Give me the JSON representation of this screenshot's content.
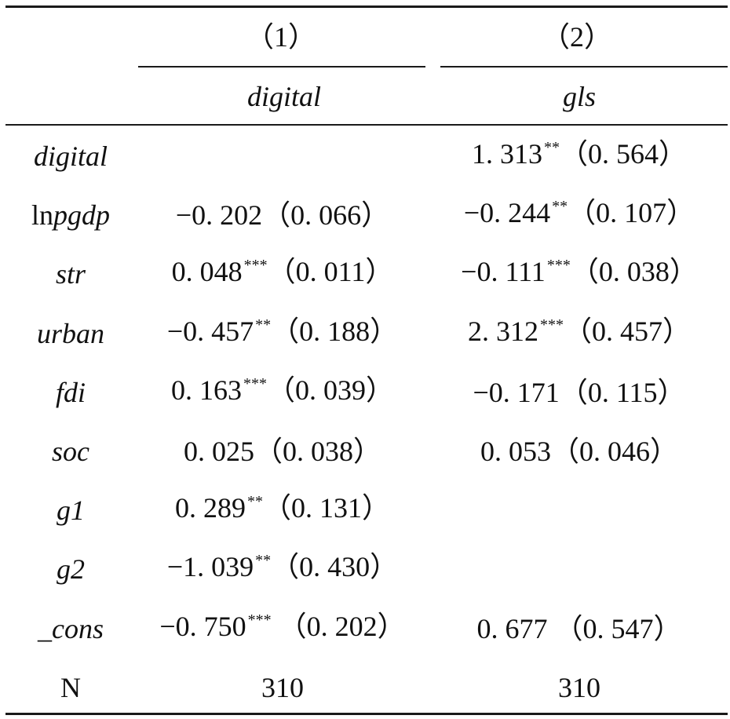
{
  "header": {
    "col1_number": "（1）",
    "col2_number": "（2）",
    "col1_dep": "digital",
    "col2_dep": "gls"
  },
  "rows": [
    {
      "var_prefix": "",
      "var_italic": "digital",
      "c1": "",
      "c1_stars": "",
      "c1_se": "",
      "c2": "1. 313",
      "c2_stars": "**",
      "c2_se": "（0. 564）"
    },
    {
      "var_prefix": "ln",
      "var_italic": "pgdp",
      "c1": "−0. 202",
      "c1_stars": "",
      "c1_se": "（0. 066）",
      "c2": "−0. 244",
      "c2_stars": "**",
      "c2_se": "（0. 107）"
    },
    {
      "var_prefix": "",
      "var_italic": "str",
      "c1": "0. 048",
      "c1_stars": "***",
      "c1_se": "（0. 011）",
      "c2": "−0. 111",
      "c2_stars": "***",
      "c2_se": "（0. 038）"
    },
    {
      "var_prefix": "",
      "var_italic": "urban",
      "c1": "−0. 457",
      "c1_stars": "**",
      "c1_se": "（0. 188）",
      "c2": "2. 312",
      "c2_stars": "***",
      "c2_se": "（0. 457）"
    },
    {
      "var_prefix": "",
      "var_italic": "fdi",
      "c1": "0. 163",
      "c1_stars": "***",
      "c1_se": "（0. 039）",
      "c2": "−0. 171",
      "c2_stars": "",
      "c2_se": "（0. 115）"
    },
    {
      "var_prefix": "",
      "var_italic": "soc",
      "c1": "0. 025",
      "c1_stars": "",
      "c1_se": "（0. 038）",
      "c2": "0. 053",
      "c2_stars": "",
      "c2_se": "（0. 046）"
    },
    {
      "var_prefix": "",
      "var_italic": "g1",
      "c1": "0. 289",
      "c1_stars": "**",
      "c1_se": "（0. 131）",
      "c2": "",
      "c2_stars": "",
      "c2_se": ""
    },
    {
      "var_prefix": "",
      "var_italic": "g2",
      "c1": "−1. 039",
      "c1_stars": "**",
      "c1_se": "（0. 430）",
      "c2": "",
      "c2_stars": "",
      "c2_se": ""
    },
    {
      "var_prefix": "",
      "var_italic": "_cons",
      "c1": "−0. 750",
      "c1_stars": "***",
      "c1_se": " （0. 202）",
      "c2": "0. 677",
      "c2_stars": "",
      "c2_se": " （0. 547）"
    },
    {
      "var_prefix": "N",
      "var_italic": "",
      "c1": "310",
      "c1_stars": "",
      "c1_se": "",
      "c2": "310",
      "c2_stars": "",
      "c2_se": ""
    }
  ]
}
